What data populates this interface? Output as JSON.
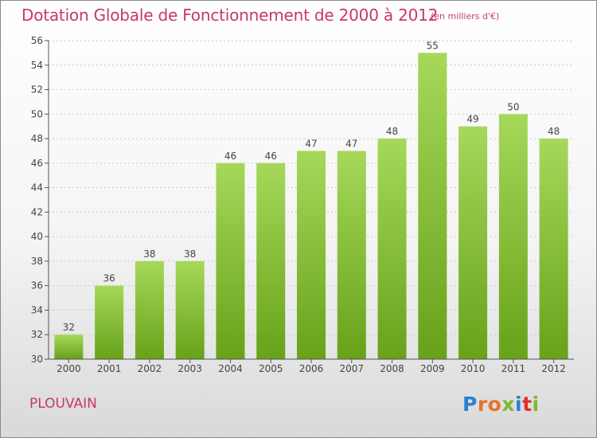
{
  "header": {
    "title": "Dotation Globale de Fonctionnement de 2000 à 2012",
    "unit": "(en milliers d'€)"
  },
  "footer": {
    "commune": "PLOUVAIN",
    "logo_letters": [
      "P",
      "r",
      "o",
      "x",
      "i",
      "t",
      "i"
    ],
    "logo_colors": [
      "#2c7fd2",
      "#e8732a",
      "#e8732a",
      "#7cb82f",
      "#2c7fd2",
      "#d9362b",
      "#7cb82f"
    ]
  },
  "colors": {
    "title": "#c8366f",
    "bar_top": "#a6d85a",
    "bar_bottom": "#67a21a",
    "axis": "#555555",
    "grid": "#c8c8c8"
  },
  "chart_data": {
    "type": "bar",
    "categories": [
      "2000",
      "2001",
      "2002",
      "2003",
      "2004",
      "2005",
      "2006",
      "2007",
      "2008",
      "2009",
      "2010",
      "2011",
      "2012"
    ],
    "values": [
      32,
      36,
      38,
      38,
      46,
      46,
      47,
      47,
      48,
      55,
      49,
      50,
      48
    ],
    "ylim": [
      30,
      56
    ],
    "yticks": [
      30,
      32,
      34,
      36,
      38,
      40,
      42,
      44,
      46,
      48,
      50,
      52,
      54,
      56
    ],
    "grid": true,
    "data_labels": true
  }
}
